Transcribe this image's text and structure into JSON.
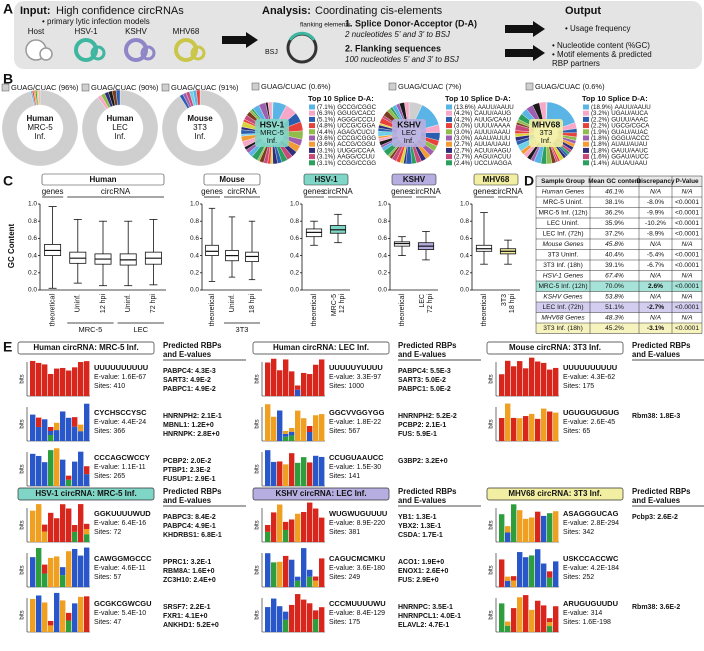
{
  "panel_a": {
    "label": "A",
    "input": {
      "head": "Input:",
      "title": "High confidence circRNAs",
      "bullet": "• primary lytic infection models",
      "models": [
        {
          "name": "Host",
          "color": "#9a9a9a"
        },
        {
          "name": "HSV-1",
          "color": "#3fb6a0"
        },
        {
          "name": "KSHV",
          "color": "#8f86c8"
        },
        {
          "name": "MHV68",
          "color": "#c9c64a"
        }
      ]
    },
    "analysis": {
      "head": "Analysis:",
      "title": "Coordinating cis-elements",
      "flank": "flanking elements",
      "bsj": "BSJ",
      "step1": "1. Splice Donor-Acceptor (D-A)",
      "step1_sub": "2 nucleotides 5' and 3' to BSJ",
      "step2": "2. Flanking sequences",
      "step2_sub": "100 nucleotides 5' and 3' to BSJ"
    },
    "output": {
      "head": "Output",
      "items": [
        [
          "• Usage frequency"
        ],
        [
          "• Nucleotide content (%GC)",
          "• Motif elements & predicted",
          "RBP partners"
        ]
      ]
    }
  },
  "panel_b": {
    "label": "B",
    "host_donuts": [
      {
        "gu_value": 96,
        "gu_label": "GUAG/CUAC (96%)",
        "center": [
          "Human",
          "MRC-5",
          "Inf."
        ]
      },
      {
        "gu_value": 90,
        "gu_label": "GUAG/CUAC (90%)",
        "center": [
          "Human",
          "LEC",
          "Inf."
        ]
      },
      {
        "gu_value": 91,
        "gu_label": "GUAG/CUAC (91%)",
        "center": [
          "Mouse",
          "3T3",
          "Inf."
        ]
      }
    ],
    "virus_donuts": [
      {
        "gu_value": 0.6,
        "gu_label": "GUAG/CUAC (0.6%)",
        "center": [
          "HSV-1",
          "MRC-5",
          "Inf."
        ],
        "color": "#7fd6c6",
        "top_title": "Top 10 Splice D-A:",
        "top10": [
          {
            "value": 7.1,
            "label": "(7.1%)",
            "seq": "GCCG/CGGC"
          },
          {
            "value": 6.3,
            "label": "(6.3%)",
            "seq": "GGUG/CACC"
          },
          {
            "value": 5.1,
            "label": "(5.1%)",
            "seq": "AGGG/CCCU"
          },
          {
            "value": 4.8,
            "label": "(4.8%)",
            "seq": "UCCG/CGGA"
          },
          {
            "value": 4.4,
            "label": "(4.4%)",
            "seq": "AGAG/CUCU"
          },
          {
            "value": 3.6,
            "label": "(3.6%)",
            "seq": "CCCG/CGGG"
          },
          {
            "value": 3.6,
            "label": "(3.6%)",
            "seq": "ACCG/CGGU"
          },
          {
            "value": 3.1,
            "label": "(3.1%)",
            "seq": "UUGG/CCAA"
          },
          {
            "value": 3.1,
            "label": "(3.1%)",
            "seq": "AAGG/CCUU"
          },
          {
            "value": 3.1,
            "label": "(3.1%)",
            "seq": "CCGG/CCGG"
          }
        ]
      },
      {
        "gu_value": 7,
        "gu_label": "GUAG/CUAC (7%)",
        "center": [
          "KSHV",
          "LEC",
          "Inf."
        ],
        "color": "#b6aee0",
        "top_title": "Top 10 Splice D-A:",
        "top10": [
          {
            "value": 13.6,
            "label": "(13.6%)",
            "seq": "AAUU/AAUU"
          },
          {
            "value": 4.2,
            "label": "(4.2%)",
            "seq": "CAUU/AAUG"
          },
          {
            "value": 4.2,
            "label": "(4.2%)",
            "seq": "AUUG/CAAU"
          },
          {
            "value": 3.0,
            "label": "(3.0%)",
            "seq": "UUUU/AAAA"
          },
          {
            "value": 3.0,
            "label": "(3.0%)",
            "seq": "AUUU/AAAU"
          },
          {
            "value": 3.0,
            "label": "(3.0%)",
            "seq": "AAAU/AUUU"
          },
          {
            "value": 2.7,
            "label": "(2.7%)",
            "seq": "AUUA/UAAU"
          },
          {
            "value": 2.7,
            "label": "(2.7%)",
            "seq": "ACUU/AAGU"
          },
          {
            "value": 2.7,
            "label": "(2.7%)",
            "seq": "AAGU/ACUU"
          },
          {
            "value": 2.4,
            "label": "(2.4%)",
            "seq": "UCCU/AGGA"
          }
        ]
      },
      {
        "gu_value": 0.6,
        "gu_label": "GUAG/CUAC (0.6%)",
        "center": [
          "MHV68",
          "3T3",
          "Inf."
        ],
        "color": "#f2efa2",
        "top_title": "Top 10 Splice D-A:",
        "top10": [
          {
            "value": 18.9,
            "label": "(18.9%)",
            "seq": "AAUU/AAUU"
          },
          {
            "value": 3.2,
            "label": "(3.2%)",
            "seq": "UGAU/AUCA"
          },
          {
            "value": 2.2,
            "label": "(2.2%)",
            "seq": "GUUU/AAAC"
          },
          {
            "value": 2.2,
            "label": "(2.2%)",
            "seq": "UGCG/CGCA"
          },
          {
            "value": 1.9,
            "label": "(1.9%)",
            "seq": "GUAU/AUAC"
          },
          {
            "value": 1.8,
            "label": "(1.8%)",
            "seq": "GGGU/ACCC"
          },
          {
            "value": 1.8,
            "label": "(1.8%)",
            "seq": "AUAU/AUAU"
          },
          {
            "value": 1.8,
            "label": "(1.8%)",
            "seq": "GAUU/AAUC"
          },
          {
            "value": 1.6,
            "label": "(1.6%)",
            "seq": "GGAU/AUCC"
          },
          {
            "value": 1.4,
            "label": "(1.4%)",
            "seq": "AUUA/UAAU"
          }
        ]
      }
    ]
  },
  "panel_c": {
    "label": "C",
    "ylabel": "GC Content",
    "ylim": [
      0,
      1
    ],
    "yticks": [
      {
        "value": 0,
        "label": "0.0"
      },
      {
        "value": 0.2,
        "label": "0.2"
      },
      {
        "value": 0.4,
        "label": "0.4"
      },
      {
        "value": 0.6,
        "label": "0.6"
      },
      {
        "value": 0.8,
        "label": "0.8"
      },
      {
        "value": 1,
        "label": "1.0"
      }
    ],
    "groups": [
      {
        "header": "Human",
        "color": "#ffffff",
        "subheads": [
          "genes",
          "circRNA"
        ],
        "categories": [
          [
            "theoretical"
          ],
          [
            "Uninf."
          ],
          [
            "12 hpi"
          ],
          [
            "Uninf."
          ],
          [
            "72 hpi"
          ]
        ],
        "cell_lines": [
          "MRC-5",
          "LEC"
        ],
        "boxes": [
          {
            "min": 0.02,
            "q1": 0.4,
            "median": 0.46,
            "q3": 0.53,
            "max": 0.97
          },
          {
            "min": 0.08,
            "q1": 0.31,
            "median": 0.37,
            "q3": 0.44,
            "max": 0.82
          },
          {
            "min": 0.05,
            "q1": 0.3,
            "median": 0.36,
            "q3": 0.42,
            "max": 0.8
          },
          {
            "min": 0.05,
            "q1": 0.29,
            "median": 0.35,
            "q3": 0.42,
            "max": 0.8
          },
          {
            "min": 0.06,
            "q1": 0.3,
            "median": 0.37,
            "q3": 0.44,
            "max": 0.82
          }
        ]
      },
      {
        "header": "Mouse",
        "color": "#ffffff",
        "subheads": [
          "genes",
          "circRNA"
        ],
        "categories": [
          [
            "theoretical"
          ],
          [
            "Uninf."
          ],
          [
            "18 hpi"
          ]
        ],
        "cell_lines": [
          "3T3"
        ],
        "boxes": [
          {
            "min": 0.1,
            "q1": 0.4,
            "median": 0.45,
            "q3": 0.52,
            "max": 0.95
          },
          {
            "min": 0.15,
            "q1": 0.34,
            "median": 0.4,
            "q3": 0.46,
            "max": 0.85
          },
          {
            "min": 0.12,
            "q1": 0.33,
            "median": 0.39,
            "q3": 0.44,
            "max": 0.8
          }
        ]
      },
      {
        "header": "HSV-1",
        "color": "#7fd6c6",
        "subheads": [
          "genes",
          "circRNA"
        ],
        "categories": [
          [
            "theoretical"
          ],
          [
            "MRC-5",
            "12 hpi"
          ]
        ],
        "cell_lines": [],
        "boxes": [
          {
            "min": 0.52,
            "q1": 0.62,
            "median": 0.67,
            "q3": 0.71,
            "max": 0.8
          },
          {
            "min": 0.55,
            "q1": 0.66,
            "median": 0.7,
            "q3": 0.75,
            "max": 0.88
          }
        ]
      },
      {
        "header": "KSHV",
        "color": "#b6aee0",
        "subheads": [
          "genes",
          "circRNA"
        ],
        "categories": [
          [
            "theoretical"
          ],
          [
            "LEC",
            "72 hpi"
          ]
        ],
        "cell_lines": [],
        "boxes": [
          {
            "min": 0.4,
            "q1": 0.51,
            "median": 0.54,
            "q3": 0.56,
            "max": 0.62
          },
          {
            "min": 0.35,
            "q1": 0.47,
            "median": 0.51,
            "q3": 0.55,
            "max": 0.68
          }
        ]
      },
      {
        "header": "MHV68",
        "color": "#f2efa2",
        "subheads": [
          "genes",
          "circRNA"
        ],
        "categories": [
          [
            "theoretical"
          ],
          [
            "3T3",
            "18 hpi"
          ]
        ],
        "cell_lines": [],
        "boxes": [
          {
            "min": 0.3,
            "q1": 0.45,
            "median": 0.48,
            "q3": 0.52,
            "max": 0.9
          },
          {
            "min": 0.3,
            "q1": 0.42,
            "median": 0.45,
            "q3": 0.48,
            "max": 0.58
          }
        ]
      }
    ]
  },
  "panel_d": {
    "label": "D",
    "header": [
      "Sample Group",
      "Mean GC content",
      "Discrepancy",
      "P-Value"
    ],
    "rows": [
      {
        "cells": [
          "Human Genes",
          "46.1%",
          "N/A",
          "N/A"
        ]
      },
      {
        "cells": [
          "MRC-5 Uninf.",
          "38.1%",
          "-8.0%",
          "<0.0001"
        ]
      },
      {
        "cells": [
          "MRC-5 Inf. (12h)",
          "36.2%",
          "-9.9%",
          "<0.0001"
        ]
      },
      {
        "cells": [
          "LEC Uninf.",
          "35.9%",
          "-10.2%",
          "<0.0001"
        ]
      },
      {
        "cells": [
          "LEC Inf. (72h)",
          "37.2%",
          "-8.9%",
          "<0.0001"
        ]
      },
      {
        "cells": [
          "Mouse Genes",
          "45.8%",
          "N/A",
          "N/A"
        ]
      },
      {
        "cells": [
          "3T3 Uninf.",
          "40.4%",
          "-5.4%",
          "<0.0001"
        ]
      },
      {
        "cells": [
          "3T3 Inf. (18h)",
          "39.1%",
          "-6.7%",
          "<0.0001"
        ]
      },
      {
        "cells": [
          "HSV-1 Genes",
          "67.4%",
          "N/A",
          "N/A"
        ]
      },
      {
        "cells": [
          "MRC-5 Inf. (12h)",
          "70.0%",
          "2.6%",
          "<0.0001"
        ],
        "fill": "#a6e2d7"
      },
      {
        "cells": [
          "KSHV Genes",
          "53.8%",
          "N/A",
          "N/A"
        ]
      },
      {
        "cells": [
          "LEC Inf. (72h)",
          "51.1%",
          "-2.7%",
          "<0.0001"
        ],
        "fill": "#d3cdef"
      },
      {
        "cells": [
          "MHV68 Genes",
          "48.3%",
          "N/A",
          "N/A"
        ]
      },
      {
        "cells": [
          "3T3 Inf. (18h)",
          "45.2%",
          "-3.1%",
          "<0.0001"
        ],
        "fill": "#f6f3bf"
      }
    ]
  },
  "panel_e": {
    "label": "E",
    "axis_label": "bits",
    "sections": [
      {
        "title": "Human circRNA: MRC-5 Inf.",
        "color": "#ffffff",
        "rbp_header": [
          "Predicted RBPs",
          "and E-values"
        ],
        "motifs": [
          {
            "name": "UUUUUUUUUU",
            "evalue": "E-value: 1.6E-67",
            "sites": "Sites: 410",
            "rbps": [
              "PABPC4: 4.3E-3",
              "SART3: 4.9E-2",
              "PABPC1: 4.9E-2"
            ]
          },
          {
            "name": "CYCHSCCYSC",
            "evalue": "E-value: 4.4E-24",
            "sites": "Sites: 366",
            "rbps": [
              "HNRNPH2: 2.1E-1",
              "MBNL1: 1.2E+0",
              "HNRNPK: 2.8E+0"
            ]
          },
          {
            "name": "CCCAGCWCCY",
            "evalue": "E-value: 1.1E-11",
            "sites": "Sites: 265",
            "rbps": [
              "PCBP2: 2.0E-2",
              "PTBP1: 2.3E-2",
              "FUSUP1: 2.9E-1"
            ]
          }
        ]
      },
      {
        "title": "Human circRNA: LEC Inf.",
        "color": "#ffffff",
        "rbp_header": [
          "Predicted RBPs",
          "and E-values"
        ],
        "motifs": [
          {
            "name": "UUUUUYUUUU",
            "evalue": "E-value: 3.3E-97",
            "sites": "Sites: 1000",
            "rbps": [
              "PABPC4: 5.5E-3",
              "SART3: 5.0E-2",
              "PABPC1: 5.0E-2"
            ]
          },
          {
            "name": "GGCVVGGYGG",
            "evalue": "E-value: 1.8E-22",
            "sites": "Sites: 567",
            "rbps": [
              "HNRNPH2: 5.2E-2",
              "PCBP2: 2.1E-1",
              "FUS: 5.9E-1"
            ]
          },
          {
            "name": "CCUGUAAUCC",
            "evalue": "E-value: 1.5E-30",
            "sites": "Sites: 141",
            "rbps": [
              "G3BP2: 3.2E+0"
            ]
          }
        ]
      },
      {
        "title": "Mouse circRNA: 3T3 Inf.",
        "color": "#ffffff",
        "rbp_header": [
          "Predicted RBPs",
          "and E-values"
        ],
        "motifs": [
          {
            "name": "UUUUUUUUUU",
            "evalue": "E-value: 4.3E-62",
            "sites": "Sites: 175",
            "rbps": []
          },
          {
            "name": "UGUGUGUGUG",
            "evalue": "E-value: 2.6E-45",
            "sites": "Sites: 65",
            "rbps": [
              "Rbm38: 1.8E-3"
            ]
          }
        ]
      },
      {
        "title": "HSV-1 circRNA: MRC-5 Inf.",
        "color": "#7fd6c6",
        "rbp_header": [
          "Predicted RBPs",
          "and E-values"
        ],
        "motifs": [
          {
            "name": "GGKUUUUWUD",
            "evalue": "E-value: 6.4E-16",
            "sites": "Sites: 72",
            "rbps": [
              "PABPC3: 8.4E-2",
              "PABPC4: 4.9E-1",
              "KHDRBS1: 6.8E-1"
            ]
          },
          {
            "name": "CAWGGMGCCC",
            "evalue": "E-value: 4.6E-11",
            "sites": "Sites: 57",
            "rbps": [
              "PPRC1: 3.2E-1",
              "RBM8A: 1.6E+0",
              "ZC3H10: 2.4E+0"
            ]
          },
          {
            "name": "GCGKCGWCGU",
            "evalue": "E-value: 5.4E-10",
            "sites": "Sites: 47",
            "rbps": [
              "SRSF7: 2.2E-1",
              "FXR1: 4.1E+0",
              "ANKHD1: 5.2E+0"
            ]
          }
        ]
      },
      {
        "title": "KSHV circRNA: LEC Inf.",
        "color": "#b6aee0",
        "rbp_header": [
          "Predicted RBPs",
          "and E-values"
        ],
        "motifs": [
          {
            "name": "WUGWUGUUUU",
            "evalue": "E-value: 8.9E-220",
            "sites": "Sites: 381",
            "rbps": [
              "YB1: 1.3E-1",
              "YBX2: 1.3E-1",
              "CSDA: 1.7E-1"
            ]
          },
          {
            "name": "CAGUCMCMKU",
            "evalue": "E-value: 3.6E-180",
            "sites": "Sites: 249",
            "rbps": [
              "ACO1: 1.9E+0",
              "ENOX1: 2.6E+0",
              "FUS: 2.9E+0"
            ]
          },
          {
            "name": "CCCMUUUUWU",
            "evalue": "E-value: 8.4E-129",
            "sites": "Sites: 175",
            "rbps": [
              "HNRNPC: 3.5E-1",
              "HNRNPCL1: 4.0E-1",
              "ELAVL2: 4.7E-1"
            ]
          }
        ]
      },
      {
        "title": "MHV68 circRNA: 3T3 Inf.",
        "color": "#f2efa2",
        "rbp_header": [
          "Predicted RBPs",
          "and E-values"
        ],
        "motifs": [
          {
            "name": "ASAGGGUCAG",
            "evalue": "E-value: 2.8E-294",
            "sites": "Sites: 342",
            "rbps": [
              "Pcbp3: 2.6E-2"
            ]
          },
          {
            "name": "USKCCACCWC",
            "evalue": "E-value: 4.2E-184",
            "sites": "Sites: 252",
            "rbps": []
          },
          {
            "name": "ARUGUGUUDU",
            "evalue": "E-value: 314",
            "sites": "Sites: 1.6E-198",
            "rbps": [
              "Rbm38: 3.6E-2"
            ]
          }
        ]
      }
    ]
  }
}
